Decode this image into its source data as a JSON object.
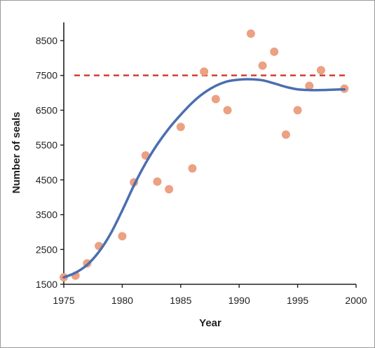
{
  "chart_data": {
    "type": "scatter",
    "xlabel": "Year",
    "ylabel": "Number of seals",
    "xlim": [
      1975,
      2000
    ],
    "ylim": [
      1500,
      9000
    ],
    "x_ticks": [
      1975,
      1980,
      1985,
      1990,
      1995,
      2000
    ],
    "y_ticks": [
      1500,
      2500,
      3500,
      4500,
      5500,
      6500,
      7500,
      8500
    ],
    "grid": false,
    "points": [
      {
        "x": 1975,
        "y": 1700
      },
      {
        "x": 1976,
        "y": 1750
      },
      {
        "x": 1977,
        "y": 2100
      },
      {
        "x": 1978,
        "y": 2600
      },
      {
        "x": 1980,
        "y": 2880
      },
      {
        "x": 1981,
        "y": 4430
      },
      {
        "x": 1982,
        "y": 5200
      },
      {
        "x": 1983,
        "y": 4450
      },
      {
        "x": 1984,
        "y": 4230
      },
      {
        "x": 1985,
        "y": 6020
      },
      {
        "x": 1986,
        "y": 4830
      },
      {
        "x": 1987,
        "y": 7610
      },
      {
        "x": 1988,
        "y": 6820
      },
      {
        "x": 1989,
        "y": 6500
      },
      {
        "x": 1991,
        "y": 8700
      },
      {
        "x": 1992,
        "y": 7780
      },
      {
        "x": 1993,
        "y": 8180
      },
      {
        "x": 1994,
        "y": 5800
      },
      {
        "x": 1995,
        "y": 6500
      },
      {
        "x": 1996,
        "y": 7200
      },
      {
        "x": 1997,
        "y": 7650
      },
      {
        "x": 1999,
        "y": 7120
      }
    ],
    "fit_curve": [
      {
        "x": 1975,
        "y": 1700
      },
      {
        "x": 1976,
        "y": 1830
      },
      {
        "x": 1977,
        "y": 2060
      },
      {
        "x": 1978,
        "y": 2430
      },
      {
        "x": 1979,
        "y": 2950
      },
      {
        "x": 1980,
        "y": 3620
      },
      {
        "x": 1981,
        "y": 4340
      },
      {
        "x": 1982,
        "y": 4980
      },
      {
        "x": 1983,
        "y": 5520
      },
      {
        "x": 1984,
        "y": 5980
      },
      {
        "x": 1985,
        "y": 6370
      },
      {
        "x": 1986,
        "y": 6720
      },
      {
        "x": 1987,
        "y": 7000
      },
      {
        "x": 1988,
        "y": 7200
      },
      {
        "x": 1989,
        "y": 7330
      },
      {
        "x": 1990,
        "y": 7380
      },
      {
        "x": 1991,
        "y": 7390
      },
      {
        "x": 1992,
        "y": 7360
      },
      {
        "x": 1993,
        "y": 7270
      },
      {
        "x": 1994,
        "y": 7170
      },
      {
        "x": 1995,
        "y": 7100
      },
      {
        "x": 1996,
        "y": 7080
      },
      {
        "x": 1997,
        "y": 7080
      },
      {
        "x": 1998,
        "y": 7090
      },
      {
        "x": 1999,
        "y": 7100
      }
    ],
    "carrying_capacity": 7500,
    "colors": {
      "points": "#eba182",
      "curve": "#4a6fb0",
      "capacity_line": "#d6463b",
      "axis": "#231f20"
    }
  }
}
